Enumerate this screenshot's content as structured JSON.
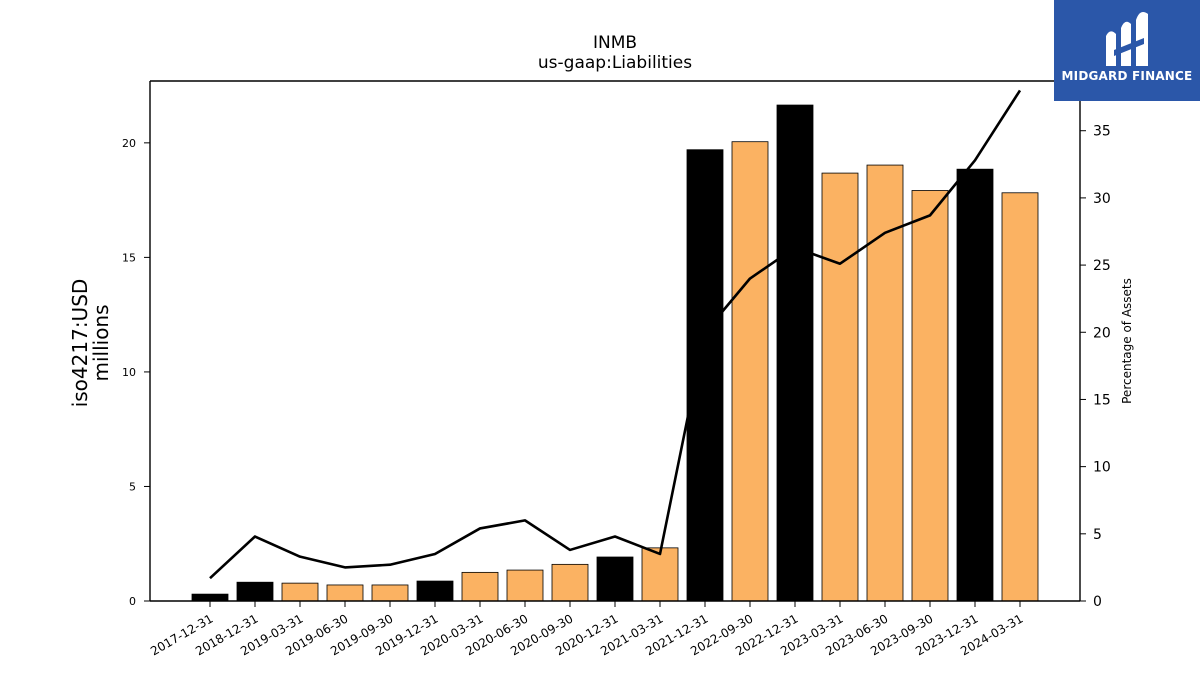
{
  "chart_data": {
    "type": "bar",
    "title": "INMB",
    "subtitle": "us-gaap:Liabilities",
    "ylabel_line1": "iso4217:USD",
    "ylabel_line2": "millions",
    "y2label": "Percentage of Assets",
    "categories": [
      "2017-12-31",
      "2018-12-31",
      "2019-03-31",
      "2019-06-30",
      "2019-09-30",
      "2019-12-31",
      "2020-03-31",
      "2020-06-30",
      "2020-09-30",
      "2020-12-31",
      "2021-03-31",
      "2021-12-31",
      "2022-09-30",
      "2022-12-31",
      "2023-03-31",
      "2023-06-30",
      "2023-09-30",
      "2023-12-31",
      "2024-03-31"
    ],
    "values": [
      0.3,
      0.82,
      0.78,
      0.7,
      0.7,
      0.87,
      1.25,
      1.35,
      1.6,
      1.92,
      2.32,
      19.7,
      20.05,
      21.65,
      18.68,
      19.03,
      17.92,
      18.85,
      17.82
    ],
    "bar_kinds": [
      "annual",
      "annual",
      "quarter",
      "quarter",
      "quarter",
      "annual",
      "quarter",
      "quarter",
      "quarter",
      "annual",
      "quarter",
      "annual",
      "quarter",
      "annual",
      "quarter",
      "quarter",
      "quarter",
      "annual",
      "quarter"
    ],
    "colors": {
      "annual": "#000000",
      "quarter": "#fbb262",
      "line": "#000000"
    },
    "ylim": [
      0,
      22.7
    ],
    "yticks": [
      0,
      5,
      10,
      15,
      20
    ],
    "y2": {
      "name": "Percentage of Assets",
      "values": [
        1.7,
        4.8,
        3.3,
        2.5,
        2.7,
        3.5,
        5.4,
        6.0,
        3.8,
        4.8,
        3.5,
        20.0,
        24.0,
        26.3,
        25.1,
        27.4,
        28.7,
        32.8,
        38.0
      ],
      "ylim": [
        0,
        38.7
      ],
      "yticks": [
        0,
        5,
        10,
        15,
        20,
        25,
        30,
        35
      ]
    }
  },
  "logo": {
    "text": "MIDGARD FINANCE"
  }
}
